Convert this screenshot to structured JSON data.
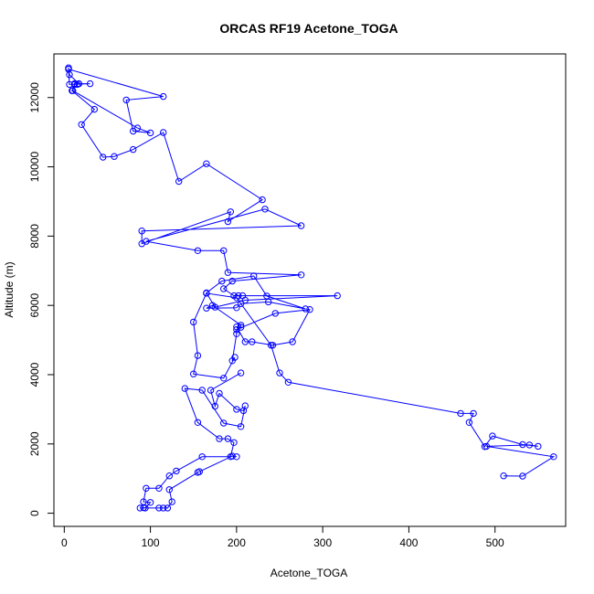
{
  "chart_data": {
    "type": "line",
    "title": "ORCAS RF19 Acetone_TOGA",
    "xlabel": "Acetone_TOGA",
    "ylabel": "Altitude (m)",
    "xlim": [
      -12,
      582
    ],
    "ylim": [
      -380,
      13260
    ],
    "xticks": [
      0,
      100,
      200,
      300,
      400,
      500
    ],
    "yticks": [
      0,
      2000,
      4000,
      6000,
      8000,
      10000,
      12000
    ],
    "grid": false,
    "legend": "none",
    "color": "#0000ff",
    "series": [
      {
        "points": [
          [
            5,
            12860
          ],
          [
            5,
            12820
          ],
          [
            115,
            12030
          ],
          [
            72,
            11930
          ],
          [
            80,
            11030
          ],
          [
            100,
            10980
          ],
          [
            85,
            11120
          ],
          [
            10,
            12200
          ],
          [
            12,
            12400
          ],
          [
            15,
            12380
          ],
          [
            17,
            12400
          ],
          [
            6,
            12660
          ],
          [
            5,
            12820
          ],
          [
            6,
            12380
          ],
          [
            30,
            12400
          ],
          [
            17,
            12400
          ],
          [
            12,
            12380
          ],
          [
            9,
            12200
          ],
          [
            35,
            11660
          ],
          [
            20,
            11220
          ],
          [
            45,
            10280
          ],
          [
            58,
            10300
          ],
          [
            80,
            10500
          ],
          [
            115,
            10990
          ],
          [
            133,
            9580
          ],
          [
            165,
            10090
          ],
          [
            230,
            9050
          ],
          [
            190,
            8420
          ],
          [
            193,
            8700
          ],
          [
            90,
            7780
          ],
          [
            90,
            8150
          ],
          [
            275,
            8300
          ],
          [
            233,
            8780
          ],
          [
            95,
            7850
          ],
          [
            155,
            7580
          ],
          [
            185,
            7580
          ],
          [
            190,
            6950
          ],
          [
            275,
            6880
          ],
          [
            195,
            6700
          ],
          [
            185,
            6480
          ],
          [
            197,
            6280
          ],
          [
            202,
            6280
          ],
          [
            207,
            6280
          ],
          [
            317,
            6280
          ],
          [
            210,
            6150
          ],
          [
            175,
            5950
          ],
          [
            165,
            6360
          ],
          [
            183,
            6700
          ],
          [
            220,
            6850
          ],
          [
            235,
            6270
          ],
          [
            280,
            5900
          ],
          [
            237,
            6100
          ],
          [
            205,
            6050
          ],
          [
            200,
            5930
          ],
          [
            165,
            5920
          ],
          [
            172,
            6000
          ],
          [
            205,
            5430
          ],
          [
            205,
            5370
          ],
          [
            200,
            5380
          ],
          [
            210,
            4950
          ],
          [
            218,
            4950
          ],
          [
            242,
            4850
          ],
          [
            265,
            4950
          ],
          [
            285,
            5880
          ],
          [
            245,
            5770
          ],
          [
            200,
            5300
          ],
          [
            200,
            5180
          ],
          [
            195,
            4400
          ],
          [
            198,
            4500
          ],
          [
            185,
            3900
          ],
          [
            150,
            4020
          ],
          [
            155,
            4550
          ],
          [
            150,
            5520
          ],
          [
            165,
            6350
          ],
          [
            200,
            6220
          ],
          [
            240,
            4850
          ],
          [
            250,
            4050
          ],
          [
            260,
            3780
          ],
          [
            460,
            2880
          ],
          [
            475,
            2880
          ],
          [
            470,
            2620
          ],
          [
            488,
            1920
          ],
          [
            497,
            2230
          ],
          [
            532,
            1980
          ],
          [
            550,
            1930
          ],
          [
            540,
            1970
          ],
          [
            490,
            1930
          ],
          [
            568,
            1630
          ],
          [
            532,
            1070
          ],
          [
            510,
            1080
          ]
        ],
        "extra_points": [
          [
            205,
            4050
          ],
          [
            170,
            3550
          ],
          [
            175,
            3090
          ],
          [
            180,
            3460
          ],
          [
            200,
            3000
          ],
          [
            208,
            2960
          ],
          [
            210,
            3100
          ],
          [
            205,
            2500
          ],
          [
            185,
            2600
          ],
          [
            160,
            3550
          ],
          [
            140,
            3600
          ],
          [
            155,
            2620
          ],
          [
            180,
            2150
          ],
          [
            190,
            2150
          ],
          [
            197,
            2040
          ],
          [
            193,
            1630
          ],
          [
            160,
            1630
          ],
          [
            130,
            1220
          ],
          [
            122,
            1080
          ],
          [
            110,
            720
          ],
          [
            95,
            720
          ],
          [
            92,
            330
          ],
          [
            100,
            310
          ],
          [
            94,
            150
          ],
          [
            92,
            160
          ],
          [
            88,
            150
          ],
          [
            110,
            150
          ],
          [
            115,
            150
          ],
          [
            120,
            150
          ],
          [
            125,
            330
          ],
          [
            122,
            680
          ],
          [
            155,
            1180
          ],
          [
            157,
            1200
          ],
          [
            195,
            1650
          ],
          [
            200,
            1630
          ]
        ]
      }
    ]
  }
}
